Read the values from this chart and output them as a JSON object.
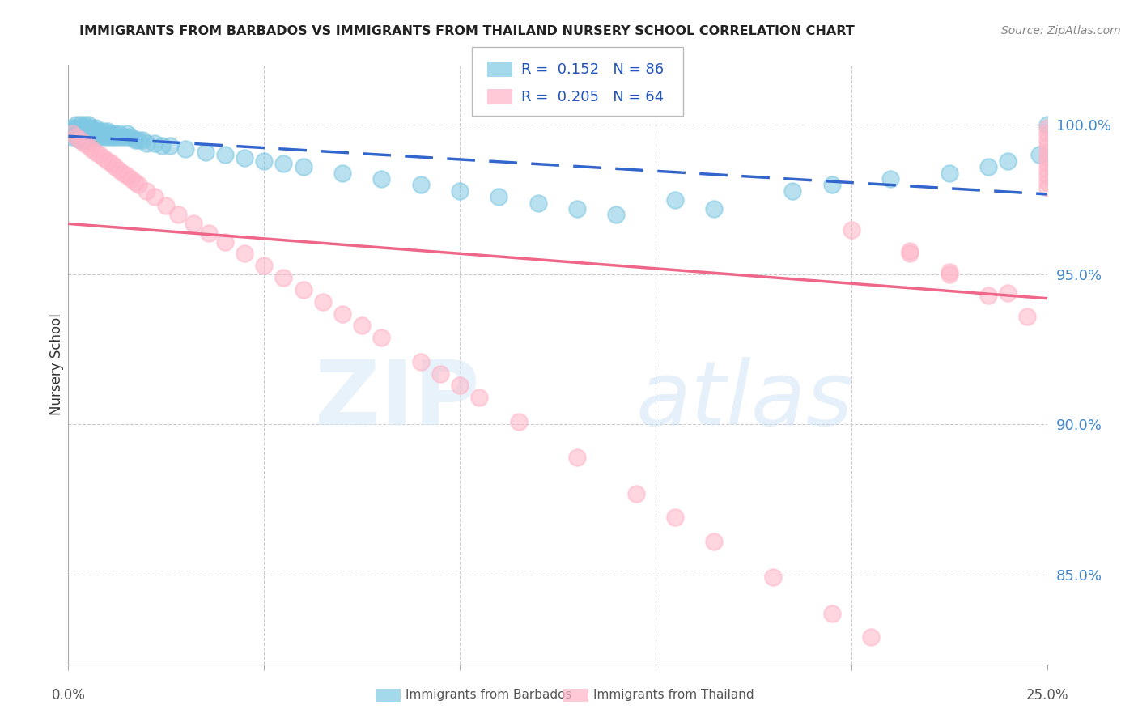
{
  "title": "IMMIGRANTS FROM BARBADOS VS IMMIGRANTS FROM THAILAND NURSERY SCHOOL CORRELATION CHART",
  "source": "Source: ZipAtlas.com",
  "ylabel": "Nursery School",
  "ytick_labels": [
    "85.0%",
    "90.0%",
    "95.0%",
    "100.0%"
  ],
  "ytick_values": [
    0.85,
    0.9,
    0.95,
    1.0
  ],
  "xlim": [
    0.0,
    0.25
  ],
  "ylim": [
    0.82,
    1.02
  ],
  "legend_label_blue": "Immigrants from Barbados",
  "legend_label_pink": "Immigrants from Thailand",
  "R_blue": 0.152,
  "N_blue": 86,
  "R_pink": 0.205,
  "N_pink": 64,
  "blue_color": "#7ec8e3",
  "pink_color": "#ffb3c6",
  "blue_line_color": "#3366cc",
  "pink_line_color": "#ee6688",
  "background_color": "#ffffff",
  "blue_x": [
    0.001,
    0.001,
    0.001,
    0.001,
    0.002,
    0.002,
    0.002,
    0.002,
    0.002,
    0.003,
    0.003,
    0.003,
    0.003,
    0.003,
    0.003,
    0.004,
    0.004,
    0.004,
    0.004,
    0.004,
    0.004,
    0.005,
    0.005,
    0.005,
    0.005,
    0.005,
    0.005,
    0.006,
    0.006,
    0.006,
    0.006,
    0.007,
    0.007,
    0.007,
    0.007,
    0.008,
    0.008,
    0.008,
    0.009,
    0.009,
    0.009,
    0.01,
    0.01,
    0.01,
    0.011,
    0.011,
    0.012,
    0.012,
    0.013,
    0.013,
    0.014,
    0.015,
    0.015,
    0.016,
    0.017,
    0.018,
    0.019,
    0.02,
    0.022,
    0.024,
    0.026,
    0.03,
    0.035,
    0.04,
    0.045,
    0.05,
    0.055,
    0.06,
    0.07,
    0.08,
    0.09,
    0.1,
    0.11,
    0.12,
    0.13,
    0.14,
    0.155,
    0.165,
    0.185,
    0.195,
    0.21,
    0.225,
    0.235,
    0.24,
    0.248,
    0.25
  ],
  "blue_y": [
    0.999,
    0.998,
    0.997,
    0.996,
    1.0,
    0.999,
    0.998,
    0.997,
    0.996,
    1.0,
    0.999,
    0.998,
    0.997,
    0.996,
    0.995,
    1.0,
    0.999,
    0.998,
    0.997,
    0.996,
    0.995,
    1.0,
    0.999,
    0.998,
    0.997,
    0.996,
    0.995,
    0.999,
    0.998,
    0.997,
    0.996,
    0.999,
    0.998,
    0.997,
    0.996,
    0.998,
    0.997,
    0.996,
    0.998,
    0.997,
    0.996,
    0.998,
    0.997,
    0.996,
    0.997,
    0.996,
    0.997,
    0.996,
    0.997,
    0.996,
    0.996,
    0.997,
    0.996,
    0.996,
    0.995,
    0.995,
    0.995,
    0.994,
    0.994,
    0.993,
    0.993,
    0.992,
    0.991,
    0.99,
    0.989,
    0.988,
    0.987,
    0.986,
    0.984,
    0.982,
    0.98,
    0.978,
    0.976,
    0.974,
    0.972,
    0.97,
    0.975,
    0.972,
    0.978,
    0.98,
    0.982,
    0.984,
    0.986,
    0.988,
    0.99,
    1.0
  ],
  "pink_x": [
    0.001,
    0.002,
    0.003,
    0.004,
    0.005,
    0.006,
    0.007,
    0.008,
    0.009,
    0.01,
    0.011,
    0.012,
    0.013,
    0.014,
    0.015,
    0.016,
    0.017,
    0.018,
    0.02,
    0.022,
    0.025,
    0.028,
    0.032,
    0.036,
    0.04,
    0.045,
    0.05,
    0.055,
    0.06,
    0.065,
    0.07,
    0.075,
    0.08,
    0.09,
    0.095,
    0.1,
    0.105,
    0.115,
    0.13,
    0.145,
    0.155,
    0.165,
    0.18,
    0.195,
    0.205,
    0.215,
    0.225,
    0.235,
    0.245,
    0.25,
    0.25,
    0.25,
    0.25,
    0.25,
    0.25,
    0.25,
    0.25,
    0.25,
    0.25,
    0.25,
    0.2,
    0.215,
    0.225,
    0.24
  ],
  "pink_y": [
    0.997,
    0.996,
    0.995,
    0.994,
    0.993,
    0.992,
    0.991,
    0.99,
    0.989,
    0.988,
    0.987,
    0.986,
    0.985,
    0.984,
    0.983,
    0.982,
    0.981,
    0.98,
    0.978,
    0.976,
    0.973,
    0.97,
    0.967,
    0.964,
    0.961,
    0.957,
    0.953,
    0.949,
    0.945,
    0.941,
    0.937,
    0.933,
    0.929,
    0.921,
    0.917,
    0.913,
    0.909,
    0.901,
    0.889,
    0.877,
    0.869,
    0.861,
    0.849,
    0.837,
    0.829,
    0.957,
    0.95,
    0.943,
    0.936,
    0.999,
    0.997,
    0.995,
    0.993,
    0.991,
    0.989,
    0.987,
    0.985,
    0.983,
    0.981,
    0.979,
    0.965,
    0.958,
    0.951,
    0.944
  ]
}
